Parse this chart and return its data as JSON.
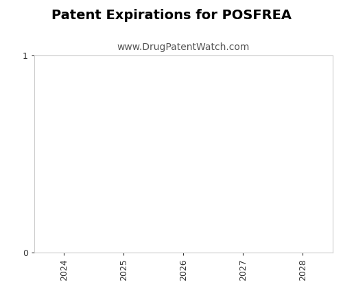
{
  "title": "Patent Expirations for POSFREA",
  "subtitle": "www.DrugPatentWatch.com",
  "title_fontsize": 14,
  "subtitle_fontsize": 10,
  "xlim": [
    2023.5,
    2028.5
  ],
  "ylim": [
    0,
    1
  ],
  "xticks": [
    2024,
    2025,
    2026,
    2027,
    2028
  ],
  "yticks": [
    0,
    1
  ],
  "background_color": "#ffffff",
  "spine_color": "#cccccc",
  "tick_color": "#333333",
  "label_color": "#555555",
  "rotate_xticks": 90,
  "figsize": [
    5.0,
    4.5
  ],
  "dpi": 100
}
